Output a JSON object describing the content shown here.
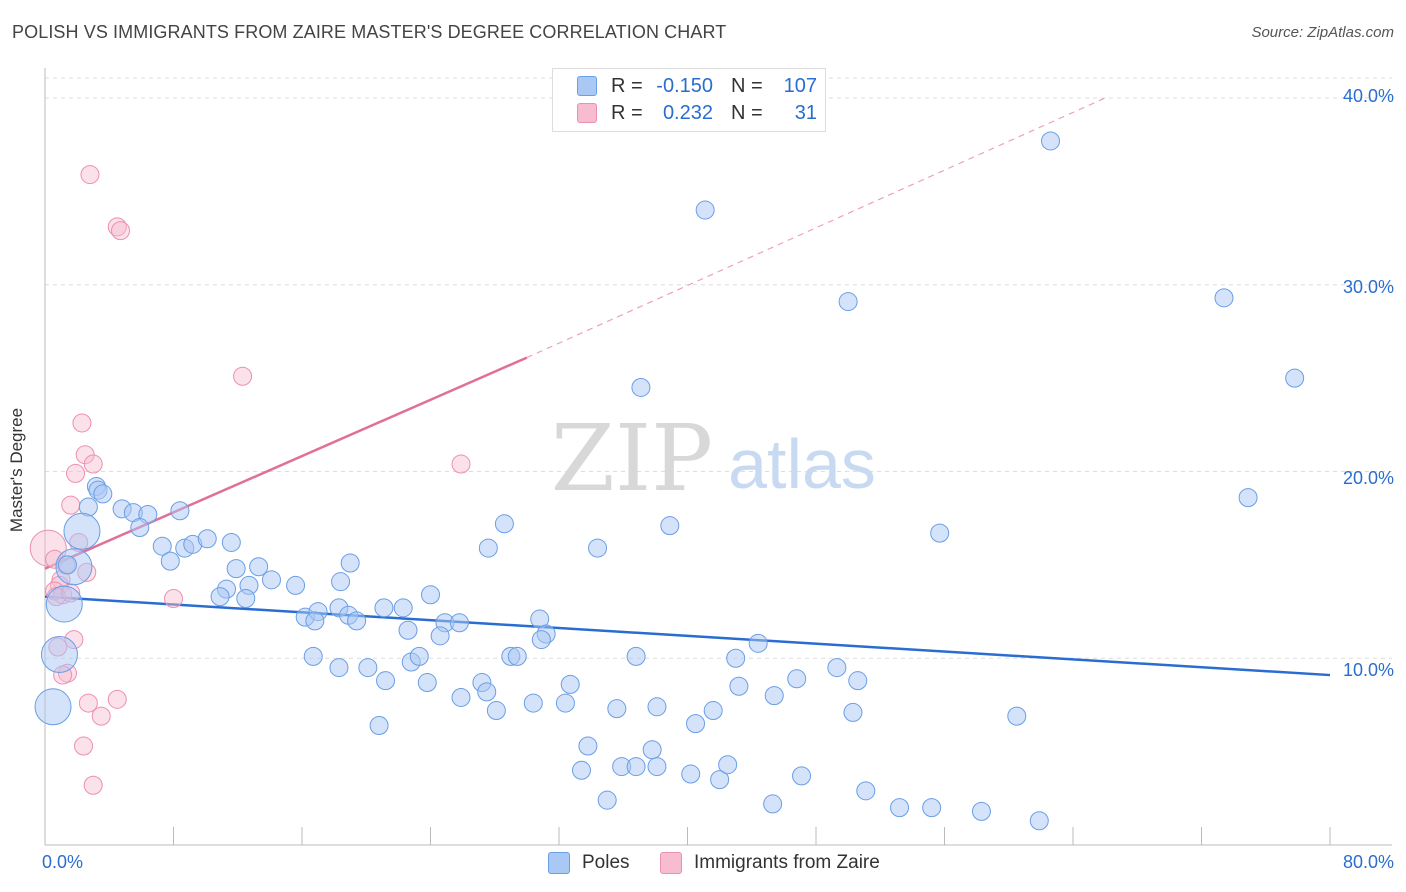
{
  "title": "POLISH VS IMMIGRANTS FROM ZAIRE MASTER'S DEGREE CORRELATION CHART",
  "source": "Source: ZipAtlas.com",
  "watermark": {
    "zip": "ZIP",
    "atlas": "atlas"
  },
  "legend": {
    "rows": [
      {
        "r_label": "R =",
        "r_value": "-0.150",
        "n_label": "N =",
        "n_value": "107",
        "color": "#a9c8f3",
        "border": "#6a9ee6"
      },
      {
        "r_label": "R =",
        "r_value": "0.232",
        "n_label": "N =",
        "n_value": "31",
        "color": "#f7bcd0",
        "border": "#ee8fb0"
      }
    ]
  },
  "bottom_legend": [
    {
      "label": "Poles",
      "color": "#a9c8f3",
      "border": "#6a9ee6"
    },
    {
      "label": "Immigrants from Zaire",
      "color": "#f7bcd0",
      "border": "#ee8fb0"
    }
  ],
  "axes": {
    "ylabel": "Master's Degree",
    "x_min_label": "0.0%",
    "x_max_label": "80.0%",
    "y_tick_labels": [
      "10.0%",
      "20.0%",
      "30.0%",
      "40.0%"
    ]
  },
  "chart_data": {
    "type": "scatter",
    "title": "POLISH VS IMMIGRANTS FROM ZAIRE MASTER'S DEGREE CORRELATION CHART",
    "xlabel": "",
    "ylabel": "Master's Degree",
    "xlim": [
      0,
      80
    ],
    "ylim": [
      0,
      41.5
    ],
    "y_ticks": [
      10,
      20,
      30,
      40
    ],
    "grid": true,
    "colors": {
      "poles": "#2a6dd0",
      "zaire": "#e0709a"
    },
    "series": [
      {
        "name": "Poles",
        "trend": {
          "x0": 0,
          "y0": 13.3,
          "x1": 80,
          "y1": 9.1
        },
        "points": [
          [
            3.2,
            19.2,
            1
          ],
          [
            2.7,
            18.1,
            1
          ],
          [
            3.3,
            19.0,
            1
          ],
          [
            4.8,
            18.0,
            1
          ],
          [
            5.5,
            17.8,
            1
          ],
          [
            6.4,
            17.7,
            1
          ],
          [
            3.6,
            18.8,
            1
          ],
          [
            8.4,
            17.9,
            1
          ],
          [
            2.3,
            16.8,
            2
          ],
          [
            5.9,
            17.0,
            1
          ],
          [
            7.3,
            16.0,
            1
          ],
          [
            8.7,
            15.9,
            1
          ],
          [
            9.2,
            16.1,
            1
          ],
          [
            10.1,
            16.4,
            1
          ],
          [
            11.6,
            16.2,
            1
          ],
          [
            7.8,
            15.2,
            1
          ],
          [
            1.8,
            14.9,
            2
          ],
          [
            11.9,
            14.8,
            1
          ],
          [
            13.3,
            14.9,
            1
          ],
          [
            14.1,
            14.2,
            1
          ],
          [
            12.7,
            13.9,
            1
          ],
          [
            11.3,
            13.7,
            1
          ],
          [
            10.9,
            13.3,
            1
          ],
          [
            12.5,
            13.2,
            1
          ],
          [
            15.6,
            13.9,
            1
          ],
          [
            19.0,
            15.1,
            1
          ],
          [
            18.4,
            14.1,
            1
          ],
          [
            1.2,
            12.9,
            2
          ],
          [
            16.2,
            12.2,
            1
          ],
          [
            17.0,
            12.5,
            1
          ],
          [
            16.8,
            12.0,
            1
          ],
          [
            18.3,
            12.7,
            1
          ],
          [
            18.9,
            12.3,
            1
          ],
          [
            19.4,
            12.0,
            1
          ],
          [
            21.1,
            12.7,
            1
          ],
          [
            22.3,
            12.7,
            1
          ],
          [
            22.6,
            11.5,
            1
          ],
          [
            24.0,
            13.4,
            1
          ],
          [
            24.9,
            11.9,
            1
          ],
          [
            25.8,
            11.9,
            1
          ],
          [
            24.6,
            11.2,
            1
          ],
          [
            27.6,
            15.9,
            1
          ],
          [
            28.6,
            17.2,
            1
          ],
          [
            30.8,
            12.1,
            1
          ],
          [
            31.2,
            11.3,
            1
          ],
          [
            30.9,
            11.0,
            1
          ],
          [
            34.4,
            15.9,
            1
          ],
          [
            38.9,
            17.1,
            1
          ],
          [
            0.9,
            10.2,
            2
          ],
          [
            16.7,
            10.1,
            1
          ],
          [
            18.3,
            9.5,
            1
          ],
          [
            20.1,
            9.5,
            1
          ],
          [
            21.2,
            8.8,
            1
          ],
          [
            22.8,
            9.8,
            1
          ],
          [
            23.3,
            10.1,
            1
          ],
          [
            23.8,
            8.7,
            1
          ],
          [
            25.9,
            7.9,
            1
          ],
          [
            27.2,
            8.7,
            1
          ],
          [
            27.5,
            8.2,
            1
          ],
          [
            28.1,
            7.2,
            1
          ],
          [
            29.0,
            10.1,
            1
          ],
          [
            29.4,
            10.1,
            1
          ],
          [
            30.4,
            7.6,
            1
          ],
          [
            32.4,
            7.6,
            1
          ],
          [
            32.7,
            8.6,
            1
          ],
          [
            36.8,
            10.1,
            1
          ],
          [
            43.0,
            10.0,
            1
          ],
          [
            44.4,
            10.8,
            1
          ],
          [
            43.2,
            8.5,
            1
          ],
          [
            45.4,
            8.0,
            1
          ],
          [
            46.8,
            8.9,
            1
          ],
          [
            49.3,
            9.5,
            1
          ],
          [
            50.6,
            8.8,
            1
          ],
          [
            35.6,
            7.3,
            1
          ],
          [
            38.1,
            7.4,
            1
          ],
          [
            40.5,
            6.5,
            1
          ],
          [
            41.6,
            7.2,
            1
          ],
          [
            20.8,
            6.4,
            1
          ],
          [
            33.8,
            5.3,
            1
          ],
          [
            37.8,
            5.1,
            1
          ],
          [
            33.4,
            4.0,
            1
          ],
          [
            35.9,
            4.2,
            1
          ],
          [
            36.8,
            4.2,
            1
          ],
          [
            38.1,
            4.2,
            1
          ],
          [
            40.2,
            3.8,
            1
          ],
          [
            42.0,
            3.5,
            1
          ],
          [
            42.5,
            4.3,
            1
          ],
          [
            47.1,
            3.7,
            1
          ],
          [
            51.1,
            2.9,
            1
          ],
          [
            35.0,
            2.4,
            1
          ],
          [
            45.3,
            2.2,
            1
          ],
          [
            53.2,
            2.0,
            1
          ],
          [
            55.2,
            2.0,
            1
          ],
          [
            58.3,
            1.8,
            1
          ],
          [
            61.9,
            1.3,
            1
          ],
          [
            60.5,
            6.9,
            1
          ],
          [
            50.3,
            7.1,
            1
          ],
          [
            55.7,
            16.7,
            1
          ],
          [
            74.9,
            18.6,
            1
          ],
          [
            77.8,
            25.0,
            1
          ],
          [
            73.4,
            29.3,
            1
          ],
          [
            50.0,
            29.1,
            1
          ],
          [
            37.1,
            24.5,
            1
          ],
          [
            41.1,
            34.0,
            1
          ],
          [
            62.6,
            37.7,
            1
          ],
          [
            0.5,
            7.4,
            2
          ],
          [
            1.4,
            15.0,
            1
          ]
        ]
      },
      {
        "name": "Immigrants from Zaire",
        "trend": {
          "x0": 0,
          "y0": 14.8,
          "x1": 30,
          "y1": 26.1,
          "dash_to_x": 66,
          "dash_to_y": 40.0
        },
        "points": [
          [
            2.8,
            35.9
          ],
          [
            4.5,
            33.1
          ],
          [
            4.7,
            32.9
          ],
          [
            12.3,
            25.1
          ],
          [
            2.3,
            22.6
          ],
          [
            2.5,
            20.9
          ],
          [
            3.0,
            20.4
          ],
          [
            1.9,
            19.9
          ],
          [
            1.6,
            18.2
          ],
          [
            0.2,
            15.9
          ],
          [
            2.1,
            16.2
          ],
          [
            0.6,
            15.3
          ],
          [
            1.3,
            15.0
          ],
          [
            2.6,
            14.6
          ],
          [
            1.0,
            14.2
          ],
          [
            0.9,
            13.9
          ],
          [
            0.6,
            13.6
          ],
          [
            1.1,
            13.4
          ],
          [
            0.7,
            13.3
          ],
          [
            8.0,
            13.2
          ],
          [
            1.8,
            11.0
          ],
          [
            0.8,
            10.6
          ],
          [
            1.4,
            9.2
          ],
          [
            1.1,
            9.1
          ],
          [
            2.7,
            7.6
          ],
          [
            4.5,
            7.8
          ],
          [
            3.5,
            6.9
          ],
          [
            2.4,
            5.3
          ],
          [
            3.0,
            3.2
          ],
          [
            25.9,
            20.4
          ],
          [
            1.6,
            13.5
          ]
        ]
      }
    ]
  }
}
